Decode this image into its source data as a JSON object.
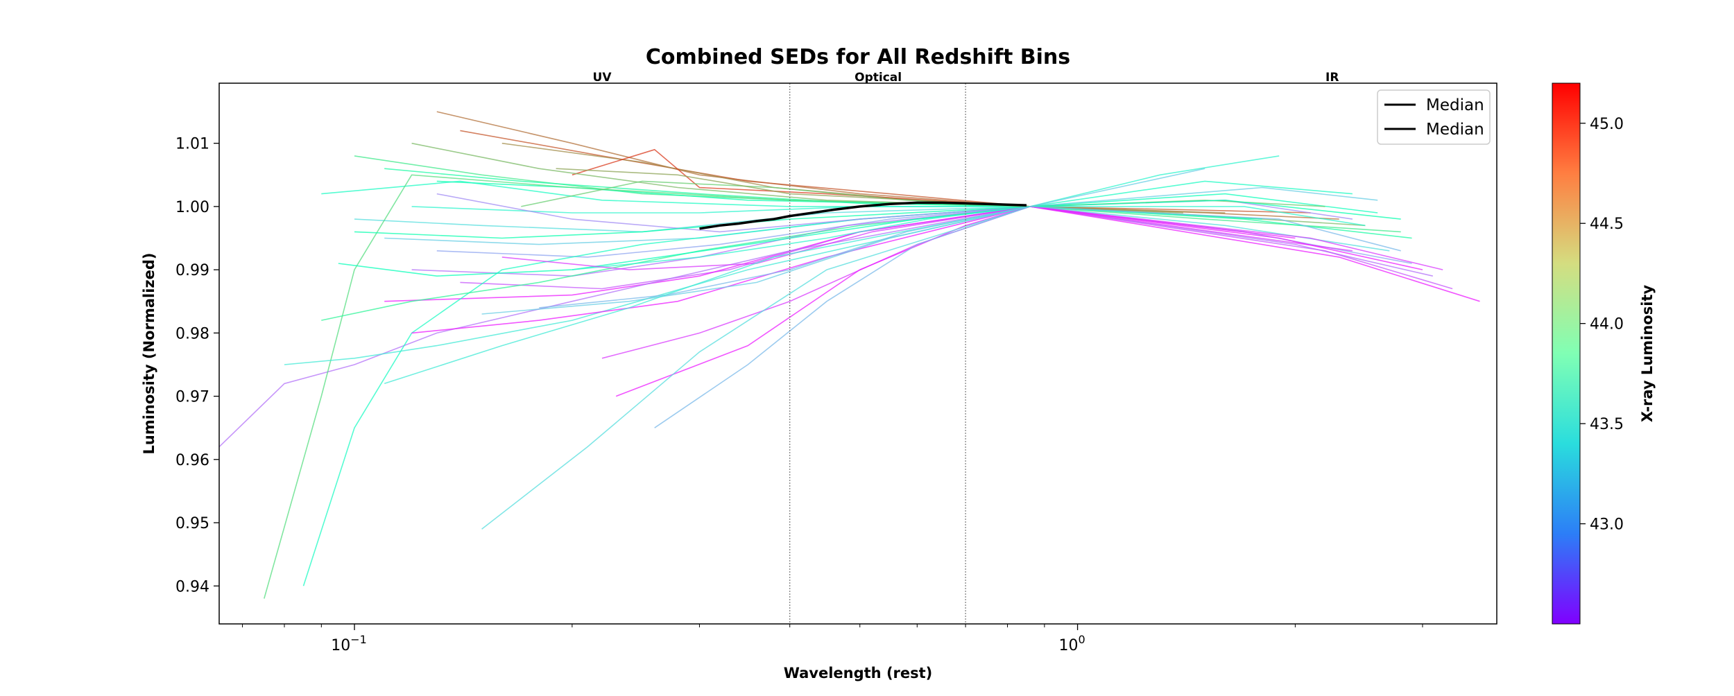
{
  "chart_data": {
    "type": "line",
    "title": "Combined SEDs for All Redshift Bins",
    "xlabel": "Wavelength (rest)",
    "ylabel": "Luminosity (Normalized)",
    "x_scale": "log",
    "xlim": [
      0.065,
      3.8
    ],
    "ylim": [
      0.934,
      1.0195
    ],
    "x_ticks": [
      {
        "value": 0.1,
        "base": "10",
        "exp": "−1"
      },
      {
        "value": 1.0,
        "base": "10",
        "exp": "0"
      }
    ],
    "y_ticks": [
      0.94,
      0.95,
      0.96,
      0.97,
      0.98,
      0.99,
      1.0,
      1.01
    ],
    "y_tick_labels": [
      "0.94",
      "0.95",
      "0.96",
      "0.97",
      "0.98",
      "0.99",
      "1.00",
      "1.01"
    ],
    "regions": [
      {
        "label": "UV",
        "x": 0.22
      },
      {
        "label": "Optical",
        "x": 0.53
      },
      {
        "label": "IR",
        "x": 2.25
      }
    ],
    "boundaries": [
      0.4,
      0.7
    ],
    "legend": {
      "location": "upper right",
      "entries": [
        "Median",
        "Median"
      ]
    },
    "colorbar": {
      "label": "X-ray Luminosity",
      "min": 42.5,
      "max": 45.2,
      "ticks": [
        43.0,
        43.5,
        44.0,
        44.5,
        45.0
      ],
      "tick_labels": [
        "43.0",
        "43.5",
        "44.0",
        "44.5",
        "45.0"
      ],
      "colormap": "rainbow"
    },
    "median_line": {
      "name": "Median",
      "color": "#000000",
      "x": [
        0.3,
        0.32,
        0.34,
        0.36,
        0.38,
        0.4,
        0.43,
        0.46,
        0.5,
        0.55,
        0.6,
        0.65,
        0.7,
        0.75,
        0.8,
        0.85
      ],
      "y": [
        0.9965,
        0.997,
        0.9973,
        0.9977,
        0.998,
        0.9985,
        0.999,
        0.9995,
        1.0,
        1.0004,
        1.0006,
        1.0006,
        1.0005,
        1.0004,
        1.0003,
        1.0002
      ]
    },
    "sed_curves": [
      {
        "lx": 44.8,
        "x": [
          0.13,
          0.2,
          0.3,
          0.5,
          0.86,
          1.5,
          2.3
        ],
        "y": [
          1.015,
          1.01,
          1.005,
          1.002,
          1.0,
          0.999,
          0.998
        ]
      },
      {
        "lx": 44.9,
        "x": [
          0.14,
          0.22,
          0.35,
          0.55,
          0.86,
          1.4,
          2.1
        ],
        "y": [
          1.012,
          1.008,
          1.004,
          1.002,
          1.0,
          0.9995,
          0.999
        ]
      },
      {
        "lx": 44.7,
        "x": [
          0.16,
          0.25,
          0.38,
          0.6,
          0.86,
          1.6
        ],
        "y": [
          1.01,
          1.007,
          1.003,
          1.001,
          1.0,
          0.999
        ]
      },
      {
        "lx": 45.0,
        "x": [
          0.2,
          0.26,
          0.3,
          0.45,
          0.86
        ],
        "y": [
          1.005,
          1.009,
          1.003,
          1.002,
          1.0
        ]
      },
      {
        "lx": 44.5,
        "x": [
          0.12,
          0.18,
          0.28,
          0.45,
          0.86,
          1.3,
          2.5
        ],
        "y": [
          1.01,
          1.006,
          1.003,
          1.001,
          1.0,
          0.999,
          0.997
        ]
      },
      {
        "lx": 44.2,
        "x": [
          0.1,
          0.15,
          0.25,
          0.4,
          0.86,
          1.5,
          2.8
        ],
        "y": [
          1.008,
          1.005,
          1.002,
          1.001,
          1.0,
          0.998,
          0.996
        ]
      },
      {
        "lx": 44.0,
        "x": [
          0.11,
          0.17,
          0.3,
          0.5,
          0.86,
          1.7,
          2.9
        ],
        "y": [
          1.006,
          1.004,
          1.002,
          1.0005,
          1.0,
          0.998,
          0.995
        ]
      },
      {
        "lx": 43.9,
        "x": [
          0.13,
          0.2,
          0.35,
          0.55,
          0.86,
          1.8
        ],
        "y": [
          1.004,
          1.003,
          1.001,
          1.0005,
          1.0,
          0.998
        ]
      },
      {
        "lx": 43.7,
        "x": [
          0.09,
          0.14,
          0.22,
          0.4,
          0.86,
          1.5,
          2.4
        ],
        "y": [
          1.002,
          1.004,
          1.001,
          1.0,
          1.0,
          1.004,
          1.002
        ]
      },
      {
        "lx": 43.6,
        "x": [
          0.12,
          0.2,
          0.3,
          0.5,
          0.86,
          1.3,
          1.9
        ],
        "y": [
          1.0,
          0.999,
          0.999,
          1.0,
          1.0,
          1.005,
          1.008
        ]
      },
      {
        "lx": 43.4,
        "x": [
          0.1,
          0.15,
          0.25,
          0.45,
          0.86,
          1.6,
          2.7
        ],
        "y": [
          0.998,
          0.997,
          0.996,
          0.999,
          1.0,
          0.997,
          0.993
        ]
      },
      {
        "lx": 43.3,
        "x": [
          0.11,
          0.18,
          0.3,
          0.5,
          0.86,
          1.5
        ],
        "y": [
          0.995,
          0.994,
          0.995,
          0.998,
          1.0,
          1.006
        ]
      },
      {
        "lx": 43.1,
        "x": [
          0.13,
          0.21,
          0.32,
          0.55,
          0.86,
          1.7,
          2.9
        ],
        "y": [
          0.993,
          0.992,
          0.994,
          0.998,
          1.0,
          0.996,
          0.991
        ]
      },
      {
        "lx": 42.9,
        "x": [
          0.12,
          0.2,
          0.3,
          0.48,
          0.86,
          2.0,
          3.1
        ],
        "y": [
          0.99,
          0.989,
          0.992,
          0.997,
          1.0,
          0.994,
          0.989
        ]
      },
      {
        "lx": 42.8,
        "x": [
          0.14,
          0.22,
          0.33,
          0.5,
          0.86,
          2.2,
          3.3
        ],
        "y": [
          0.988,
          0.987,
          0.99,
          0.996,
          1.0,
          0.993,
          0.987
        ]
      },
      {
        "lx": 42.6,
        "x": [
          0.11,
          0.2,
          0.3,
          0.5,
          0.86,
          2.3,
          3.6
        ],
        "y": [
          0.985,
          0.986,
          0.989,
          0.996,
          1.0,
          0.992,
          0.985
        ]
      },
      {
        "lx": 42.7,
        "x": [
          0.22,
          0.3,
          0.4,
          0.6,
          0.86,
          2.4
        ],
        "y": [
          0.976,
          0.98,
          0.985,
          0.994,
          1.0,
          0.993
        ]
      },
      {
        "lx": 42.6,
        "x": [
          0.23,
          0.35,
          0.5,
          0.7,
          0.86,
          2.0
        ],
        "y": [
          0.97,
          0.978,
          0.99,
          0.997,
          1.0,
          0.995
        ]
      },
      {
        "lx": 43.2,
        "x": [
          0.26,
          0.35,
          0.45,
          0.6,
          0.86
        ],
        "y": [
          0.965,
          0.975,
          0.985,
          0.994,
          1.0
        ]
      },
      {
        "lx": 43.4,
        "x": [
          0.15,
          0.21,
          0.3,
          0.45,
          0.86
        ],
        "y": [
          0.949,
          0.962,
          0.977,
          0.99,
          1.0
        ]
      },
      {
        "lx": 42.9,
        "x": [
          0.065,
          0.08,
          0.1,
          0.13,
          0.2,
          0.4,
          0.86
        ],
        "y": [
          0.962,
          0.972,
          0.975,
          0.98,
          0.985,
          0.993,
          1.0
        ]
      },
      {
        "lx": 44.3,
        "x": [
          0.075,
          0.09,
          0.1,
          0.12,
          0.2,
          0.4,
          0.86
        ],
        "y": [
          0.938,
          0.97,
          0.99,
          1.005,
          1.003,
          1.001,
          1.0
        ]
      },
      {
        "lx": 43.7,
        "x": [
          0.085,
          0.1,
          0.12,
          0.16,
          0.25,
          0.5,
          0.86
        ],
        "y": [
          0.94,
          0.965,
          0.98,
          0.99,
          0.994,
          0.998,
          1.0
        ]
      },
      {
        "lx": 43.5,
        "x": [
          0.08,
          0.1,
          0.13,
          0.2,
          0.35,
          0.86
        ],
        "y": [
          0.975,
          0.976,
          0.978,
          0.982,
          0.99,
          1.0
        ]
      },
      {
        "lx": 44.1,
        "x": [
          0.09,
          0.12,
          0.18,
          0.3,
          0.5,
          0.86
        ],
        "y": [
          0.982,
          0.985,
          0.988,
          0.993,
          0.997,
          1.0
        ]
      },
      {
        "lx": 43.8,
        "x": [
          0.095,
          0.13,
          0.2,
          0.35,
          0.6,
          0.86,
          1.6,
          2.6
        ],
        "y": [
          0.991,
          0.989,
          0.99,
          0.994,
          0.998,
          1.0,
          1.002,
          0.999
        ]
      },
      {
        "lx": 42.6,
        "x": [
          0.12,
          0.18,
          0.28,
          0.45,
          0.86,
          1.9,
          3.0
        ],
        "y": [
          0.98,
          0.982,
          0.985,
          0.992,
          1.0,
          0.995,
          0.99
        ]
      },
      {
        "lx": 43.0,
        "x": [
          0.13,
          0.2,
          0.32,
          0.5,
          0.86,
          1.6,
          2.4
        ],
        "y": [
          1.002,
          0.998,
          0.996,
          0.998,
          1.0,
          1.001,
          0.998
        ]
      },
      {
        "lx": 43.3,
        "x": [
          0.15,
          0.24,
          0.36,
          0.55,
          0.86,
          1.8,
          2.6
        ],
        "y": [
          0.983,
          0.985,
          0.988,
          0.995,
          1.0,
          1.003,
          1.001
        ]
      },
      {
        "lx": 44.4,
        "x": [
          0.17,
          0.25,
          0.38,
          0.58,
          0.86,
          1.5,
          2.2
        ],
        "y": [
          1.0,
          1.004,
          1.003,
          1.001,
          1.0,
          1.001,
          1.0
        ]
      },
      {
        "lx": 44.6,
        "x": [
          0.19,
          0.28,
          0.4,
          0.6,
          0.86,
          1.4
        ],
        "y": [
          1.006,
          1.005,
          1.002,
          1.001,
          1.0,
          0.999
        ]
      },
      {
        "lx": 43.6,
        "x": [
          0.2,
          0.3,
          0.45,
          0.62,
          0.86,
          1.7,
          2.5
        ],
        "y": [
          0.99,
          0.992,
          0.995,
          0.998,
          1.0,
          1.0,
          0.997
        ]
      },
      {
        "lx": 43.9,
        "x": [
          0.1,
          0.16,
          0.25,
          0.4,
          0.86,
          1.6,
          2.8
        ],
        "y": [
          0.996,
          0.995,
          0.996,
          0.998,
          1.0,
          1.001,
          0.998
        ]
      },
      {
        "lx": 42.7,
        "x": [
          0.16,
          0.24,
          0.36,
          0.52,
          0.86,
          2.1,
          3.2
        ],
        "y": [
          0.992,
          0.99,
          0.991,
          0.996,
          1.0,
          0.995,
          0.99
        ]
      },
      {
        "lx": 43.2,
        "x": [
          0.18,
          0.27,
          0.4,
          0.58,
          0.86,
          1.9,
          2.8
        ],
        "y": [
          0.984,
          0.986,
          0.99,
          0.996,
          1.0,
          0.998,
          0.993
        ]
      },
      {
        "lx": 43.5,
        "x": [
          0.11,
          0.16,
          0.24,
          0.38,
          0.86
        ],
        "y": [
          0.972,
          0.978,
          0.984,
          0.992,
          1.0
        ]
      }
    ]
  }
}
